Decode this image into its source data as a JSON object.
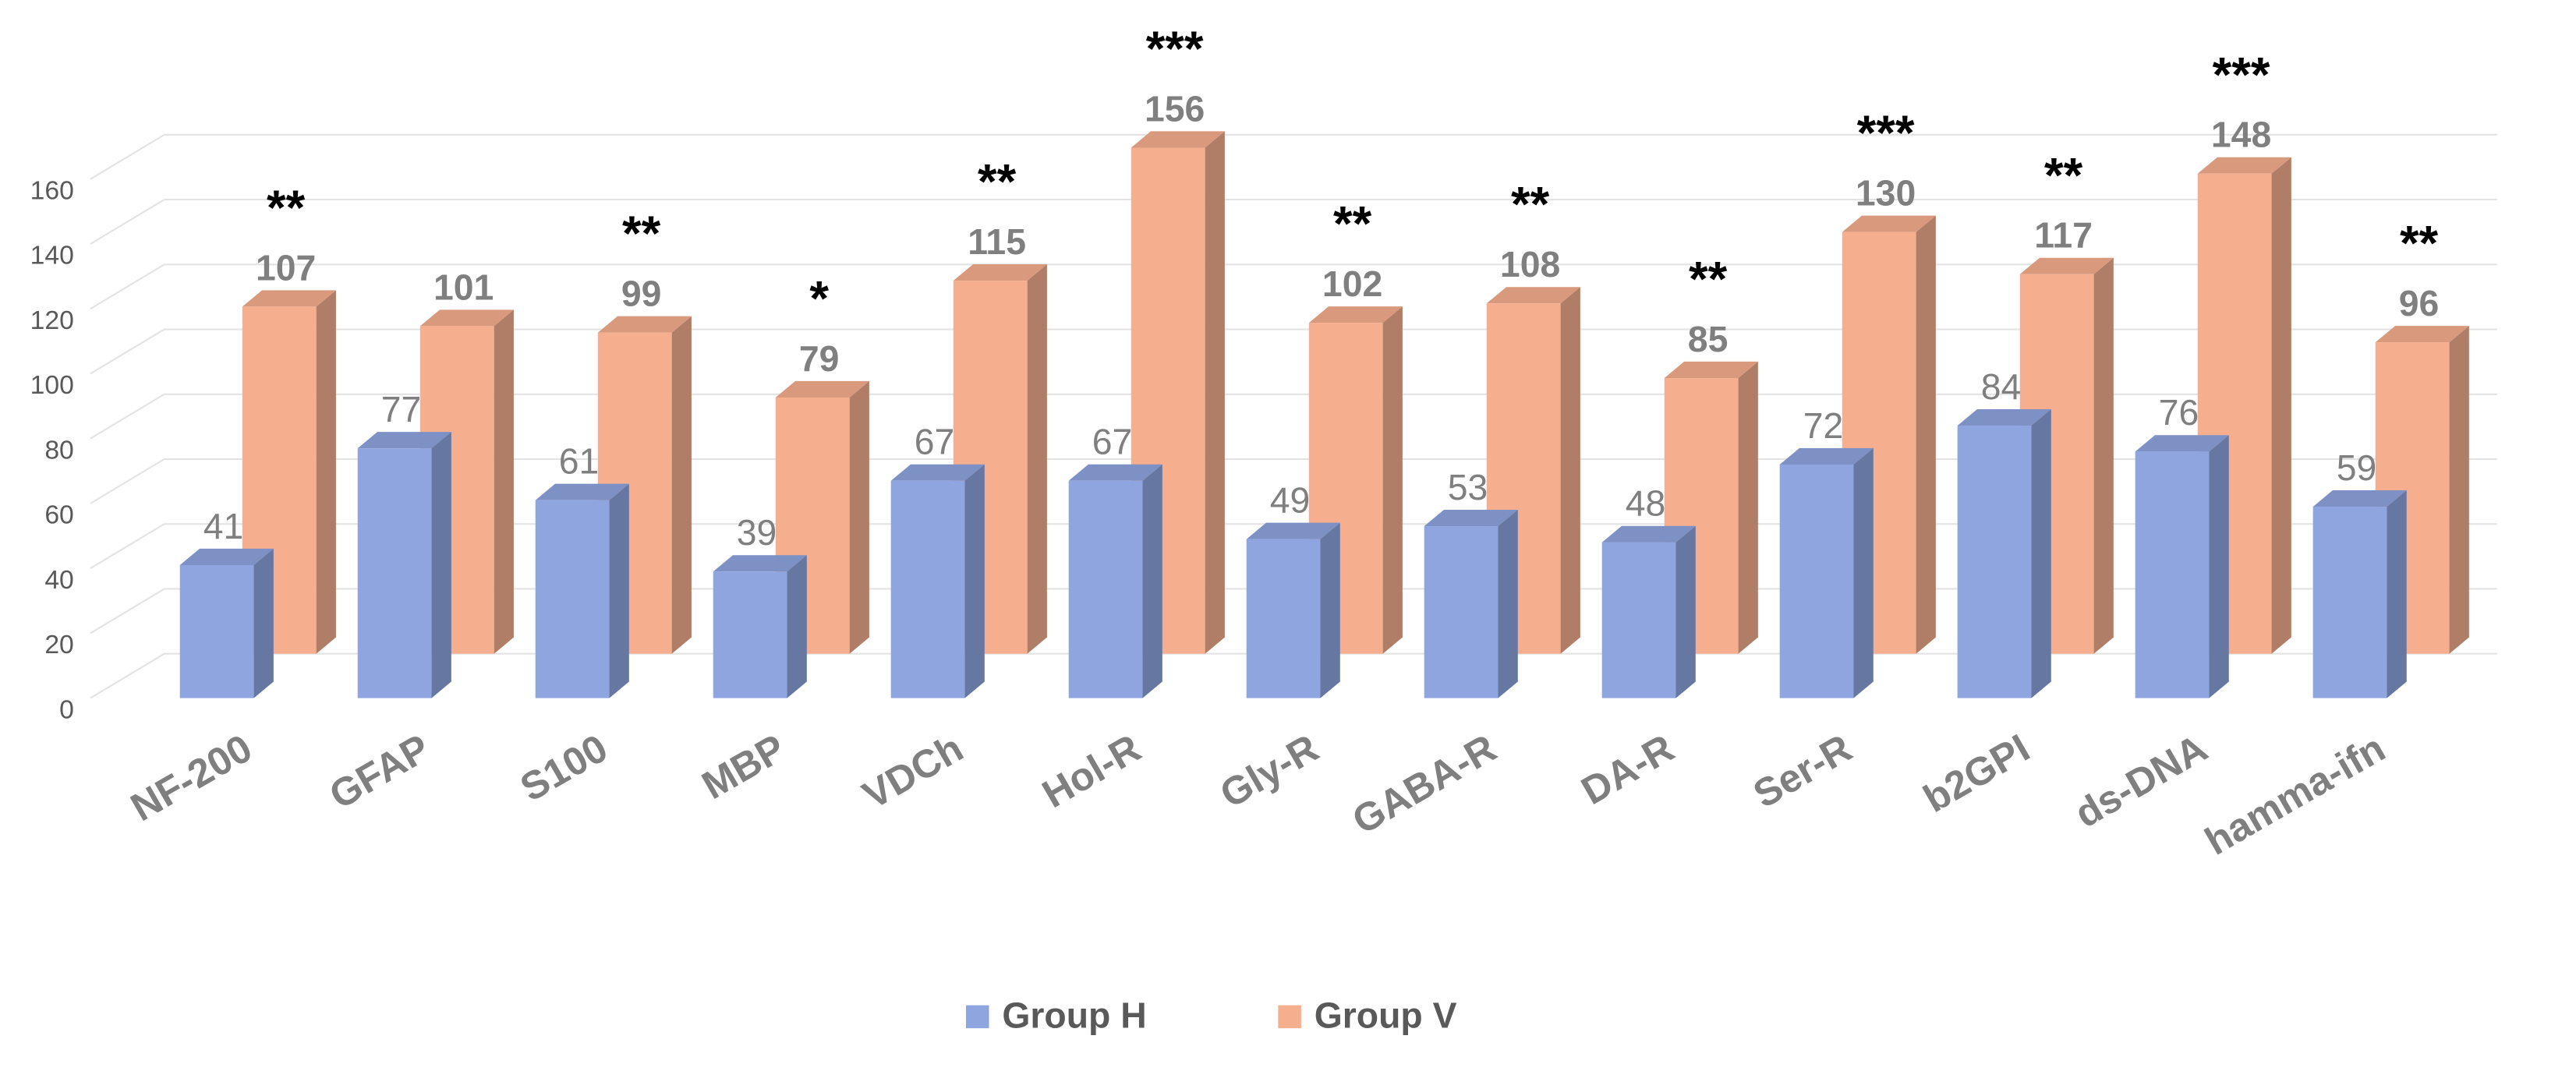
{
  "chart_data": {
    "type": "bar3d",
    "categories": [
      "NF-200",
      "GFAP",
      "S100",
      "MBP",
      "VDCh",
      "Hol-R",
      "Gly-R",
      "GABA-R",
      "DA-R",
      "Ser-R",
      "b2GPI",
      "ds-DNA",
      "hamma-ifn"
    ],
    "series": [
      {
        "name": "Group H",
        "color": "#8ea5e0",
        "values": [
          41,
          77,
          61,
          39,
          67,
          67,
          49,
          53,
          48,
          72,
          84,
          76,
          59
        ]
      },
      {
        "name": "Group V",
        "color": "#f5ae8e",
        "values": [
          107,
          101,
          99,
          79,
          115,
          156,
          102,
          108,
          85,
          130,
          117,
          148,
          96
        ]
      }
    ],
    "annotations": [
      "**",
      null,
      "**",
      "*",
      "**",
      "***",
      "**",
      "**",
      "**",
      "***",
      "**",
      "***",
      "**"
    ],
    "ylim": [
      0,
      160
    ],
    "yticks": [
      0,
      20,
      40,
      60,
      80,
      100,
      120,
      140,
      160
    ],
    "grid": true,
    "legend": "bottom"
  }
}
